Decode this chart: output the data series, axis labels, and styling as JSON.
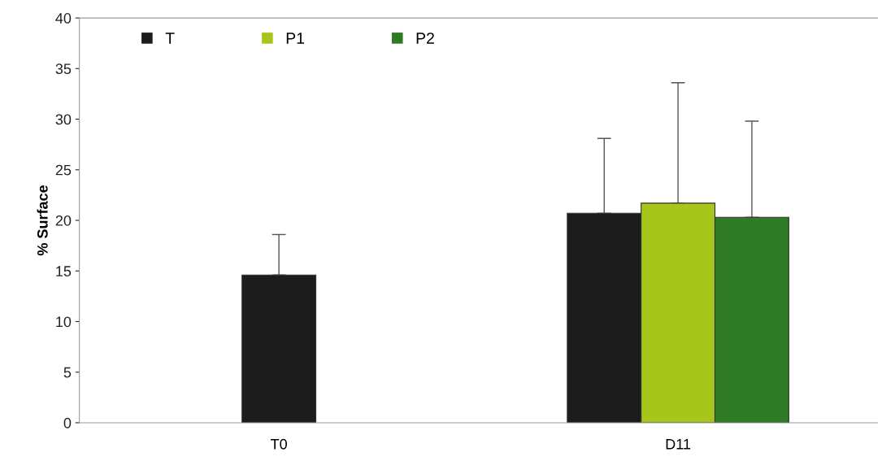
{
  "chart_data": {
    "type": "bar",
    "ylabel": "% Surface",
    "categories": [
      "T0",
      "D11"
    ],
    "series": [
      {
        "name": "T",
        "color": "#1c1c1c",
        "values": [
          14.6,
          20.7
        ],
        "errors": [
          [
            14.6,
            18.6
          ],
          [
            20.7,
            28.1
          ]
        ]
      },
      {
        "name": "P1",
        "color": "#a6c61c",
        "values": [
          null,
          21.7
        ],
        "errors": [
          null,
          [
            21.7,
            33.6
          ]
        ]
      },
      {
        "name": "P2",
        "color": "#2f7a24",
        "values": [
          null,
          20.3
        ],
        "errors": [
          null,
          [
            20.3,
            29.8
          ]
        ]
      }
    ],
    "ylim": [
      0,
      40
    ],
    "yticks": [
      0,
      5,
      10,
      15,
      20,
      25,
      30,
      35,
      40
    ],
    "grid": false,
    "legend": "top left"
  }
}
